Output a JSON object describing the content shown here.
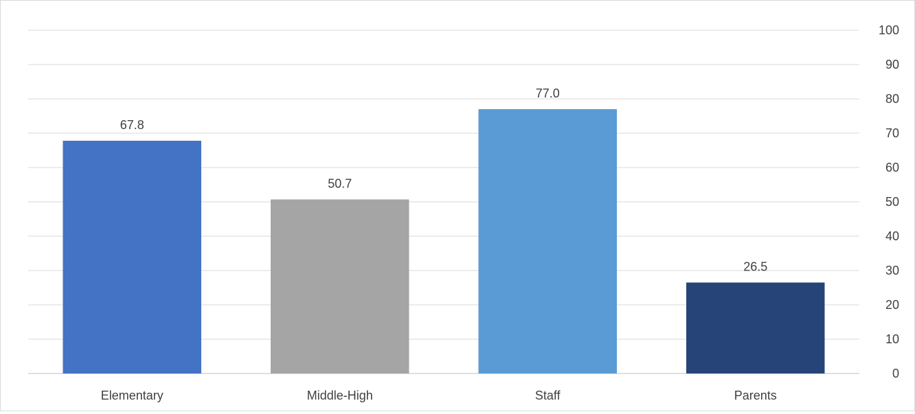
{
  "chart_data": {
    "type": "bar",
    "categories": [
      "Elementary",
      "Middle-High",
      "Staff",
      "Parents"
    ],
    "values": [
      67.8,
      50.7,
      77.0,
      26.5
    ],
    "value_labels": [
      "67.8",
      "50.7",
      "77.0",
      "26.5"
    ],
    "colors": [
      "#4472c4",
      "#a5a5a5",
      "#5b9bd5",
      "#264478"
    ],
    "ylim": [
      0,
      100
    ],
    "yticks": [
      0,
      10,
      20,
      30,
      40,
      50,
      60,
      70,
      80,
      90,
      100
    ],
    "y_axis_side": "right",
    "grid": true,
    "legend": false
  }
}
